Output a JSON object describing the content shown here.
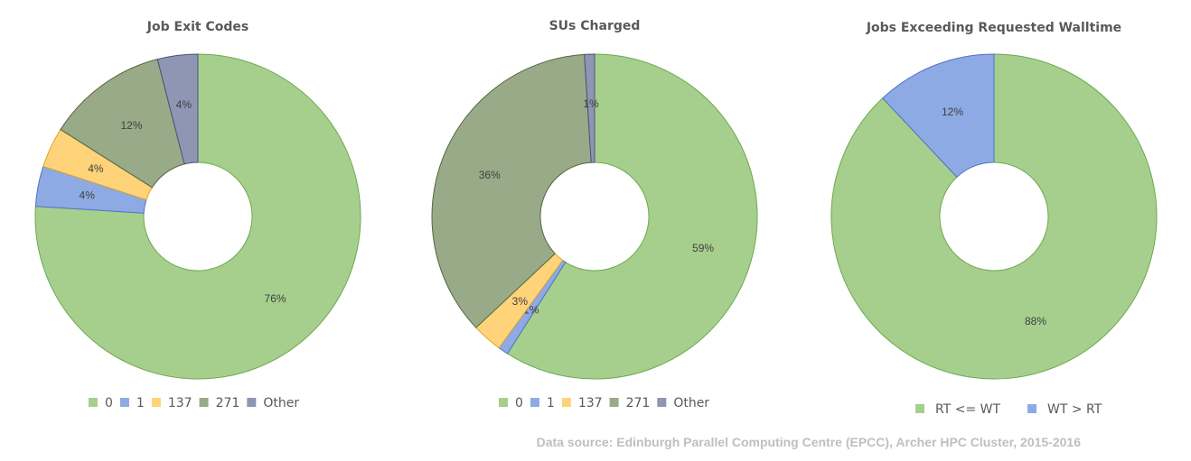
{
  "chart_data": [
    {
      "type": "pie",
      "title": "Job Exit Codes",
      "slices": [
        {
          "name": "0",
          "value": 76,
          "label": "76%",
          "color": "#a6cf8e"
        },
        {
          "name": "1",
          "value": 4,
          "label": "4%",
          "color": "#8eaae4"
        },
        {
          "name": "137",
          "value": 4,
          "label": "4%",
          "color": "#ffd37a"
        },
        {
          "name": "271",
          "value": 12,
          "label": "12%",
          "color": "#98aa88"
        },
        {
          "name": "Other",
          "value": 4,
          "label": "4%",
          "color": "#8e96b4"
        }
      ]
    },
    {
      "type": "pie",
      "title": "SUs Charged",
      "slices": [
        {
          "name": "0",
          "value": 59,
          "label": "59%",
          "color": "#a6cf8e"
        },
        {
          "name": "1",
          "value": 1,
          "label": "1%",
          "color": "#8eaae4"
        },
        {
          "name": "137",
          "value": 3,
          "label": "3%",
          "color": "#ffd37a"
        },
        {
          "name": "271",
          "value": 36,
          "label": "36%",
          "color": "#98aa88"
        },
        {
          "name": "Other",
          "value": 1,
          "label": "1%",
          "color": "#8e96b4"
        }
      ]
    },
    {
      "type": "pie",
      "title": "Jobs Exceeding Requested Walltime",
      "slices": [
        {
          "name": "RT <= WT",
          "value": 88,
          "label": "88%",
          "color": "#a6cf8e"
        },
        {
          "name": "WT > RT",
          "value": 12,
          "label": "12%",
          "color": "#8eaae4"
        }
      ]
    }
  ],
  "source": "Data source: Edinburgh Parallel Computing Centre (EPCC), Archer HPC Cluster, 2015-2016"
}
